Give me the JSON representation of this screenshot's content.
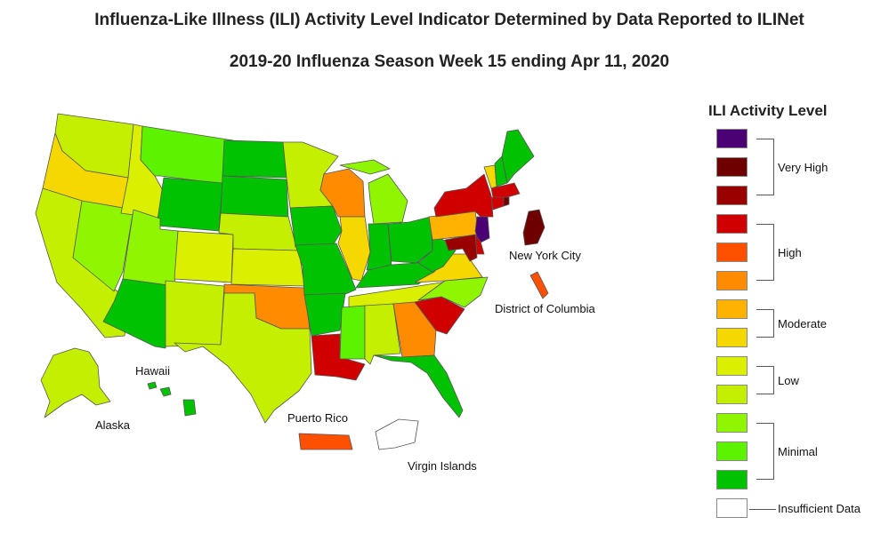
{
  "title": "Influenza-Like Illness (ILI) Activity Level Indicator Determined by Data Reported to ILINet",
  "subtitle": "2019-20 Influenza Season Week 15 ending Apr 11, 2020",
  "legend": {
    "title": "ILI Activity Level",
    "levels": [
      {
        "level": 13,
        "color": "#4b0073"
      },
      {
        "level": 12,
        "color": "#6e0000"
      },
      {
        "level": 11,
        "color": "#990000"
      },
      {
        "level": 10,
        "color": "#d10000"
      },
      {
        "level": 9,
        "color": "#ff5000"
      },
      {
        "level": 8,
        "color": "#ff8c00"
      },
      {
        "level": 7,
        "color": "#ffb300"
      },
      {
        "level": 6,
        "color": "#f5d800"
      },
      {
        "level": 5,
        "color": "#dbef00"
      },
      {
        "level": 4,
        "color": "#c4f000"
      },
      {
        "level": 3,
        "color": "#8ff500"
      },
      {
        "level": 2,
        "color": "#5df200"
      },
      {
        "level": 1,
        "color": "#00c200"
      },
      {
        "level": 0,
        "color": "#ffffff"
      }
    ],
    "groups": {
      "very_high": "Very High",
      "high": "High",
      "moderate": "Moderate",
      "low": "Low",
      "minimal": "Minimal",
      "insufficient": "Insufficient Data"
    }
  },
  "labels": {
    "hawaii": "Hawaii",
    "alaska": "Alaska",
    "puerto_rico": "Puerto Rico",
    "virgin_islands": "Virgin Islands",
    "nyc": "New York City",
    "dc": "District of Columbia"
  },
  "states": {
    "WA": 4,
    "OR": 6,
    "CA": 4,
    "NV": 3,
    "ID": 5,
    "MT": 2,
    "WY": 1,
    "UT": 3,
    "AZ": 1,
    "CO": 5,
    "NM": 4,
    "ND": 1,
    "SD": 1,
    "NE": 4,
    "KS": 5,
    "OK": 8,
    "TX": 4,
    "MN": 4,
    "IA": 1,
    "MO": 1,
    "AR": 1,
    "LA": 10,
    "WI": 8,
    "IL": 6,
    "MI": 3,
    "IN": 1,
    "OH": 1,
    "KY": 1,
    "TN": 5,
    "MS": 2,
    "AL": 4,
    "GA": 8,
    "FL": 1,
    "SC": 10,
    "NC": 3,
    "VA": 6,
    "WV": 1,
    "PA": 7,
    "NY": 10,
    "VT": 6,
    "NH": 1,
    "ME": 1,
    "MA": 10,
    "CT": 10,
    "RI": 12,
    "NJ": 13,
    "DE": 10,
    "MD": 11,
    "AK": 4,
    "HI": 1,
    "NYC": 12,
    "DC": 9,
    "PR": 9,
    "VI": 0
  }
}
